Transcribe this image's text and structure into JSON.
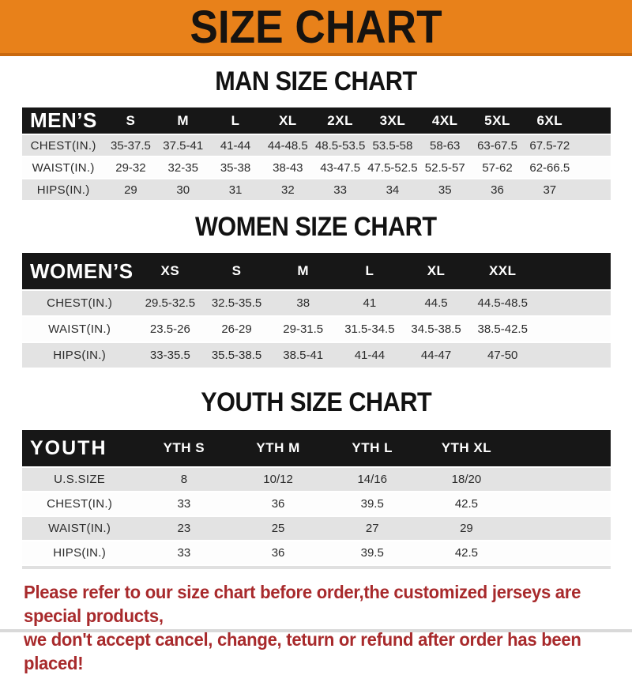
{
  "banner": {
    "title": "SIZE CHART"
  },
  "chart_data": [
    {
      "type": "table",
      "title": "MAN SIZE CHART",
      "corner_label": "MEN’S",
      "columns": [
        "S",
        "M",
        "L",
        "XL",
        "2XL",
        "3XL",
        "4XL",
        "5XL",
        "6XL"
      ],
      "rows": [
        {
          "label": "CHEST(IN.)",
          "values": [
            "35-37.5",
            "37.5-41",
            "41-44",
            "44-48.5",
            "48.5-53.5",
            "53.5-58",
            "58-63",
            "63-67.5",
            "67.5-72"
          ]
        },
        {
          "label": "WAIST(IN.)",
          "values": [
            "29-32",
            "32-35",
            "35-38",
            "38-43",
            "43-47.5",
            "47.5-52.5",
            "52.5-57",
            "57-62",
            "62-66.5"
          ]
        },
        {
          "label": "HIPS(IN.)",
          "values": [
            "29",
            "30",
            "31",
            "32",
            "33",
            "34",
            "35",
            "36",
            "37"
          ]
        }
      ]
    },
    {
      "type": "table",
      "title": "WOMEN SIZE CHART",
      "corner_label": "WOMEN’S",
      "columns": [
        "XS",
        "S",
        "M",
        "L",
        "XL",
        "XXL"
      ],
      "rows": [
        {
          "label": "CHEST(IN.)",
          "values": [
            "29.5-32.5",
            "32.5-35.5",
            "38",
            "41",
            "44.5",
            "44.5-48.5"
          ]
        },
        {
          "label": "WAIST(IN.)",
          "values": [
            "23.5-26",
            "26-29",
            "29-31.5",
            "31.5-34.5",
            "34.5-38.5",
            "38.5-42.5"
          ]
        },
        {
          "label": "HIPS(IN.)",
          "values": [
            "33-35.5",
            "35.5-38.5",
            "38.5-41",
            "41-44",
            "44-47",
            "47-50"
          ]
        }
      ]
    },
    {
      "type": "table",
      "title": "YOUTH SIZE CHART",
      "corner_label": "YOUTH",
      "columns": [
        "YTH S",
        "YTH M",
        "YTH L",
        "YTH XL"
      ],
      "rows": [
        {
          "label": "U.S.SIZE",
          "values": [
            "8",
            "10/12",
            "14/16",
            "18/20"
          ]
        },
        {
          "label": "CHEST(IN.)",
          "values": [
            "33",
            "36",
            "39.5",
            "42.5"
          ]
        },
        {
          "label": "WAIST(IN.)",
          "values": [
            "23",
            "25",
            "27",
            "29"
          ]
        },
        {
          "label": "HIPS(IN.)",
          "values": [
            "33",
            "36",
            "39.5",
            "42.5"
          ]
        }
      ]
    }
  ],
  "footer": {
    "line1": "Please refer to our size chart before order,the customized jerseys are special products,",
    "line2": "we don't accept cancel, change, teturn or refund after order has been placed!"
  },
  "colors": {
    "banner_bg": "#e8811a",
    "banner_edge": "#c9690f",
    "table_header_bg": "#171717",
    "row_shade": "#e3e3e3",
    "notice_text": "#a82a2c"
  }
}
